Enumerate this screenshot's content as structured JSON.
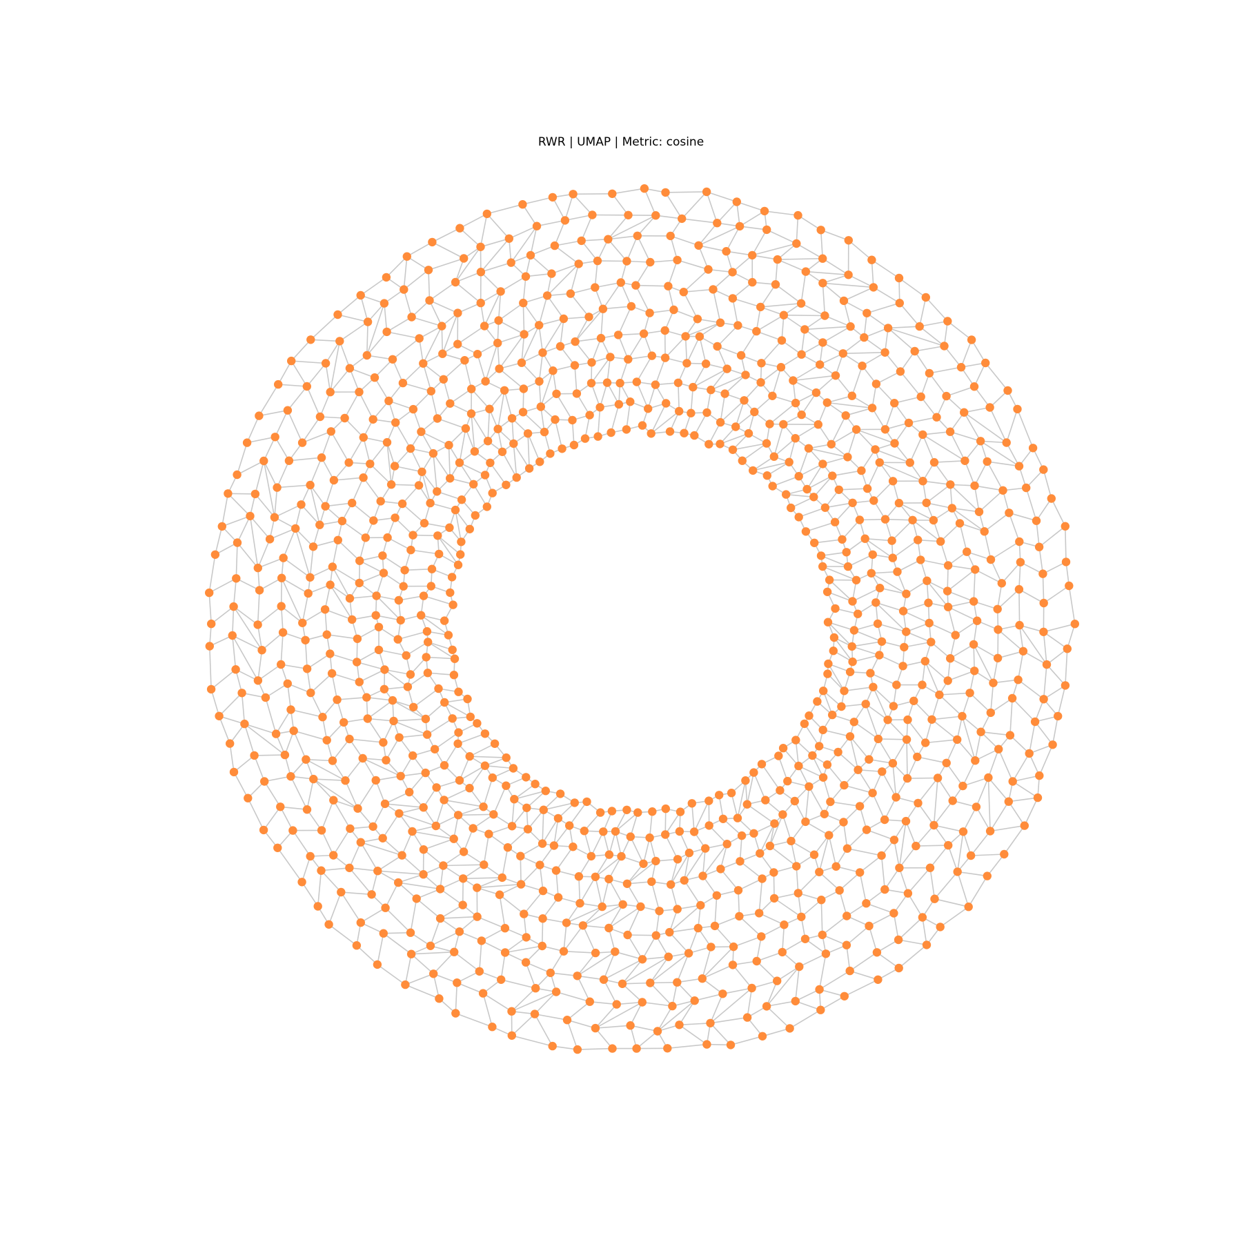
{
  "title": "RWR | UMAP | Metric: cosine",
  "colors": {
    "node": "#FF8C3A",
    "edge": "#C8C8C8",
    "background": "#FFFFFF"
  },
  "graph": {
    "layout_type": "ring-shaped embedding (annulus)",
    "edge_style": "thin light-gray straight lines",
    "node_style": "filled orange circles"
  }
}
